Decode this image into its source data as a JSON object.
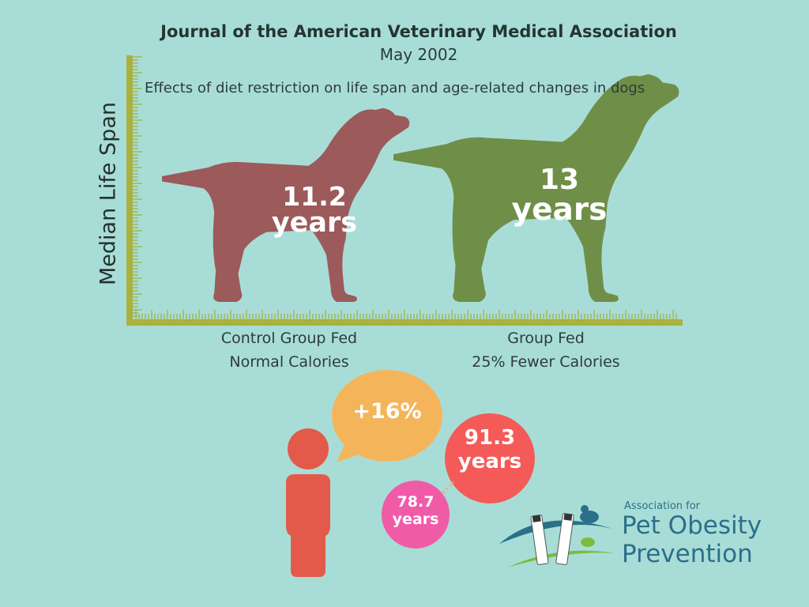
{
  "header": {
    "journal": "Journal of the American Veterinary Medical Association",
    "date": "May 2002"
  },
  "chart_data": {
    "type": "bar",
    "title": "Effects of diet restriction on life span and age-related changes in dogs",
    "ylabel": "Median Life Span",
    "xlabel": "",
    "categories": [
      "Control Group Fed\nNormal Calories",
      "Group Fed\n25% Fewer Calories"
    ],
    "category_lines": [
      [
        "Control Group Fed",
        "Normal Calories"
      ],
      [
        "Group Fed",
        "25% Fewer Calories"
      ]
    ],
    "values": [
      11.2,
      13
    ],
    "value_labels": [
      [
        "11.2",
        "years"
      ],
      [
        "13",
        "years"
      ]
    ],
    "bar_colors": [
      "#9c5a5a",
      "#6f8f48"
    ],
    "ylim": [
      0,
      14
    ],
    "grid": false
  },
  "human_comparison": {
    "increase": "+16%",
    "before": [
      "78.7",
      "years"
    ],
    "after": [
      "91.3",
      "years"
    ],
    "colors": {
      "person": "#e45a4a",
      "increase_bubble": "#f4b55a",
      "after_bubble": "#f45a58",
      "before_bubble": "#f05ba8"
    }
  },
  "logo": {
    "line1": "Association for",
    "line2": "Pet Obesity",
    "line3": "Prevention"
  },
  "colors": {
    "background": "#a8ddd7",
    "axis": "#a9b140"
  }
}
